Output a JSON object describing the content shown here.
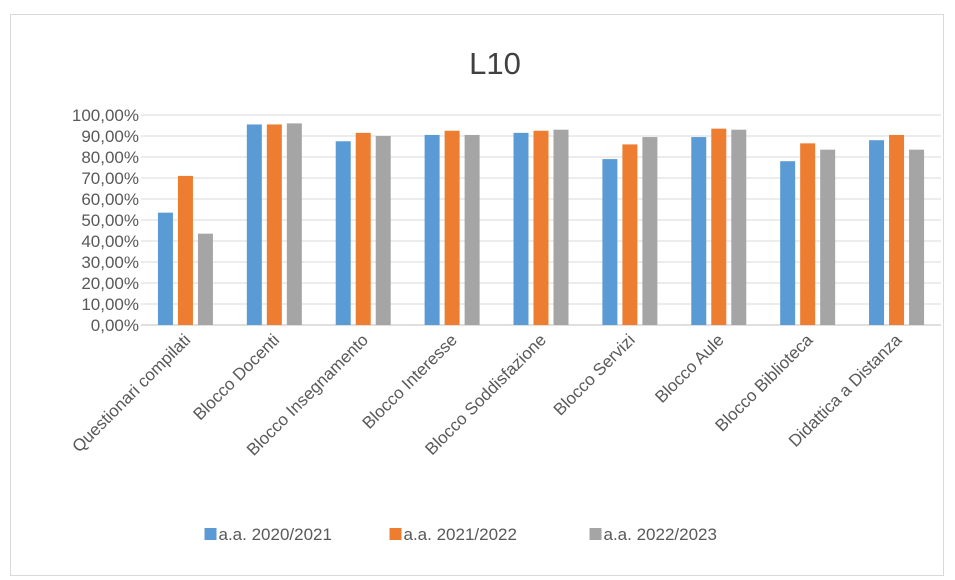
{
  "chart_data": {
    "type": "bar",
    "title": "L10",
    "xlabel": "",
    "ylabel": "",
    "ylim": [
      0,
      100
    ],
    "y_tick_step": 10,
    "y_tick_format": "percent-2dec-comma",
    "grid": true,
    "legend_position": "bottom",
    "categories": [
      "Questionari compilati",
      "Blocco Docenti",
      "Blocco Insegnamento",
      "Blocco Interesse",
      "Blocco Soddisfazione",
      "Blocco Servizi",
      "Blocco Aule",
      "Blocco Biblioteca",
      "Didattica a Distanza"
    ],
    "series": [
      {
        "name": "a.a. 2020/2021",
        "color": "#5b9bd5",
        "values": [
          53.5,
          95.5,
          87.5,
          90.5,
          91.5,
          79,
          89.5,
          78,
          88
        ]
      },
      {
        "name": "a.a. 2021/2022",
        "color": "#ed7d31",
        "values": [
          71,
          95.5,
          91.5,
          92.5,
          92.5,
          86,
          93.5,
          86.5,
          90.5
        ]
      },
      {
        "name": "a.a. 2022/2023",
        "color": "#a5a5a5",
        "values": [
          43.5,
          96,
          90,
          90.5,
          93,
          89.5,
          93,
          83.5,
          83.5
        ]
      }
    ]
  }
}
